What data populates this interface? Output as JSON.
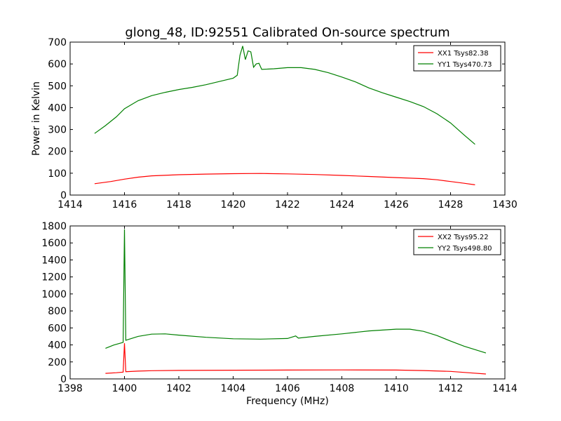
{
  "chart_data": [
    {
      "type": "line",
      "title": "glong_48, ID:92551 Calibrated On-source spectrum",
      "xlabel": "",
      "ylabel": "Power in Kelvin",
      "xlim": [
        1414,
        1430
      ],
      "ylim": [
        0,
        700
      ],
      "xticks": [
        "1414",
        "1416",
        "1418",
        "1420",
        "1422",
        "1424",
        "1426",
        "1428",
        "1430"
      ],
      "yticks": [
        "0",
        "100",
        "200",
        "300",
        "400",
        "500",
        "600",
        "700"
      ],
      "legend_position": "top-right",
      "series": [
        {
          "name": "XX1 Tsys82.38",
          "color": "#ff0000",
          "points": [
            [
              1414.9,
              52
            ],
            [
              1415.5,
              62
            ],
            [
              1416,
              73
            ],
            [
              1416.5,
              82
            ],
            [
              1417,
              88
            ],
            [
              1418,
              93
            ],
            [
              1419,
              96
            ],
            [
              1420,
              98
            ],
            [
              1421,
              99
            ],
            [
              1422,
              97
            ],
            [
              1423,
              94
            ],
            [
              1424,
              90
            ],
            [
              1425,
              85
            ],
            [
              1426,
              80
            ],
            [
              1427,
              75
            ],
            [
              1427.5,
              70
            ],
            [
              1428,
              62
            ],
            [
              1428.5,
              54
            ],
            [
              1428.9,
              47
            ]
          ]
        },
        {
          "name": "YY1 Tsys470.73",
          "color": "#008000",
          "points": [
            [
              1414.9,
              282
            ],
            [
              1415.3,
              318
            ],
            [
              1415.7,
              358
            ],
            [
              1416,
              395
            ],
            [
              1416.5,
              432
            ],
            [
              1417,
              455
            ],
            [
              1417.5,
              470
            ],
            [
              1418,
              483
            ],
            [
              1418.5,
              493
            ],
            [
              1419,
              505
            ],
            [
              1419.5,
              520
            ],
            [
              1420,
              535
            ],
            [
              1420.15,
              548
            ],
            [
              1420.25,
              640
            ],
            [
              1420.35,
              682
            ],
            [
              1420.45,
              620
            ],
            [
              1420.55,
              660
            ],
            [
              1420.65,
              655
            ],
            [
              1420.75,
              585
            ],
            [
              1420.85,
              600
            ],
            [
              1420.95,
              603
            ],
            [
              1421.05,
              575
            ],
            [
              1421.5,
              578
            ],
            [
              1422,
              583
            ],
            [
              1422.5,
              583
            ],
            [
              1423,
              575
            ],
            [
              1423.5,
              560
            ],
            [
              1424,
              540
            ],
            [
              1424.5,
              518
            ],
            [
              1425,
              490
            ],
            [
              1425.5,
              468
            ],
            [
              1426,
              448
            ],
            [
              1426.5,
              428
            ],
            [
              1427,
              405
            ],
            [
              1427.5,
              372
            ],
            [
              1428,
              330
            ],
            [
              1428.5,
              275
            ],
            [
              1428.9,
              232
            ]
          ]
        }
      ]
    },
    {
      "type": "line",
      "title": "",
      "xlabel": "Frequency (MHz)",
      "ylabel": "",
      "xlim": [
        1398,
        1414
      ],
      "ylim": [
        0,
        1800
      ],
      "xticks": [
        "1398",
        "1400",
        "1402",
        "1404",
        "1406",
        "1408",
        "1410",
        "1412",
        "1414"
      ],
      "yticks": [
        "0",
        "200",
        "400",
        "600",
        "800",
        "1000",
        "1200",
        "1400",
        "1600",
        "1800"
      ],
      "legend_position": "top-right",
      "series": [
        {
          "name": "XX2 Tsys95.22",
          "color": "#ff0000",
          "points": [
            [
              1399.3,
              65
            ],
            [
              1399.7,
              73
            ],
            [
              1399.95,
              80
            ],
            [
              1400,
              420
            ],
            [
              1400.05,
              85
            ],
            [
              1400.5,
              92
            ],
            [
              1401,
              97
            ],
            [
              1402,
              100
            ],
            [
              1404,
              102
            ],
            [
              1406,
              104
            ],
            [
              1408,
              106
            ],
            [
              1410,
              104
            ],
            [
              1411,
              98
            ],
            [
              1412,
              88
            ],
            [
              1412.7,
              72
            ],
            [
              1413.3,
              58
            ]
          ]
        },
        {
          "name": "YY2 Tsys498.80",
          "color": "#008000",
          "points": [
            [
              1399.3,
              360
            ],
            [
              1399.6,
              398
            ],
            [
              1399.95,
              430
            ],
            [
              1400,
              1760
            ],
            [
              1400.05,
              455
            ],
            [
              1400.5,
              500
            ],
            [
              1401,
              527
            ],
            [
              1401.5,
              530
            ],
            [
              1402,
              515
            ],
            [
              1403,
              490
            ],
            [
              1404,
              472
            ],
            [
              1405,
              468
            ],
            [
              1406,
              476
            ],
            [
              1406.3,
              505
            ],
            [
              1406.4,
              480
            ],
            [
              1407,
              500
            ],
            [
              1408,
              530
            ],
            [
              1409,
              565
            ],
            [
              1410,
              585
            ],
            [
              1410.5,
              585
            ],
            [
              1411,
              560
            ],
            [
              1411.5,
              510
            ],
            [
              1412,
              445
            ],
            [
              1412.5,
              385
            ],
            [
              1413.3,
              305
            ]
          ]
        }
      ]
    }
  ]
}
